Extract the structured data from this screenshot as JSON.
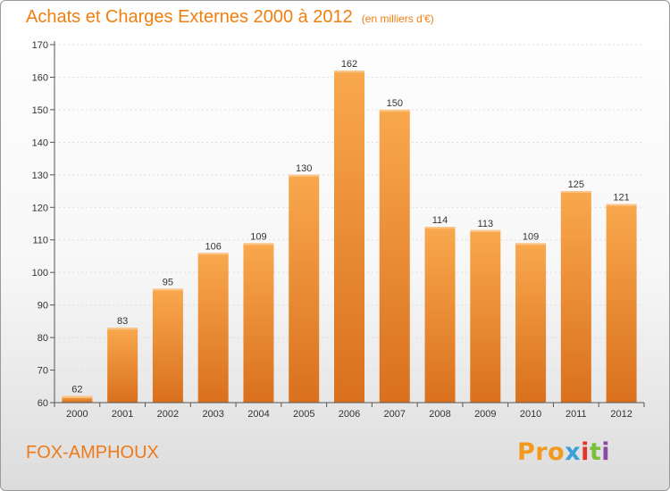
{
  "title": "Achats et Charges Externes 2000 à 2012",
  "subtitle": "(en milliers d'€)",
  "commune": "FOX-AMPHOUX",
  "brand": {
    "letters": [
      "P",
      "r",
      "o",
      "x",
      "i",
      "t",
      "i"
    ],
    "colors": [
      "#f29a1f",
      "#f29a1f",
      "#f29a1f",
      "#3aa0d8",
      "#e2342d",
      "#7bbf3a",
      "#8b4ba3"
    ]
  },
  "colors": {
    "bar_top": "#f9a84e",
    "bar_bottom": "#d9701d",
    "title": "#f07f0e",
    "axis": "#555555",
    "grid": "#dddddd"
  },
  "chart_data": {
    "type": "bar",
    "categories": [
      "2000",
      "2001",
      "2002",
      "2003",
      "2004",
      "2005",
      "2006",
      "2007",
      "2008",
      "2009",
      "2010",
      "2011",
      "2012"
    ],
    "values": [
      62,
      83,
      95,
      106,
      109,
      130,
      162,
      150,
      114,
      113,
      109,
      125,
      121
    ],
    "ylim": [
      60,
      170
    ],
    "yticks": [
      60,
      70,
      80,
      90,
      100,
      110,
      120,
      130,
      140,
      150,
      160,
      170
    ],
    "grid": true,
    "xlabel": "",
    "ylabel": ""
  }
}
